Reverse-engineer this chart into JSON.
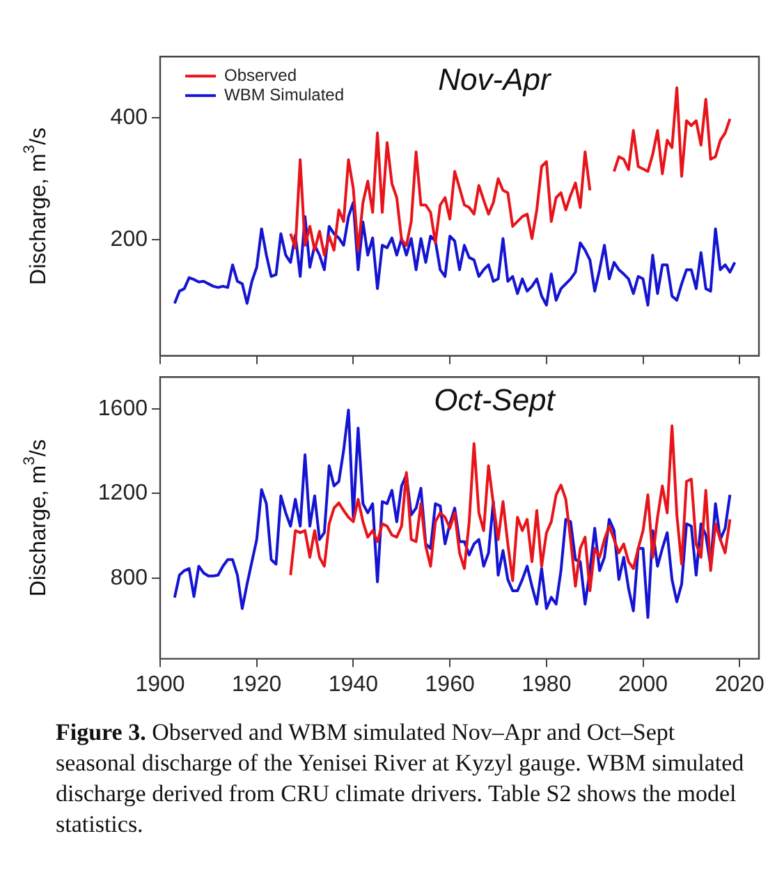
{
  "chart_data": [
    {
      "type": "line",
      "title": "Nov-Apr",
      "ylabel": "Discharge, m$^{3}$/s",
      "legend": "top left",
      "grid": false,
      "tick_labels": "y",
      "xlim": [
        1900,
        2024
      ],
      "xticks": [
        1900,
        1920,
        1940,
        1960,
        1980,
        2000,
        2020
      ],
      "ylim": [
        10,
        500
      ],
      "yticks": [
        200,
        400
      ],
      "series": [
        {
          "name": "Observed",
          "color": "#e8141b",
          "x": [
            1927,
            1928,
            1929,
            1930,
            1931,
            1932,
            1933,
            1934,
            1935,
            1936,
            1937,
            1938,
            1939,
            1940,
            1941,
            1942,
            1943,
            1944,
            1945,
            1946,
            1947,
            1948,
            1949,
            1950,
            1951,
            1952,
            1953,
            1954,
            1955,
            1956,
            1957,
            1958,
            1959,
            1960,
            1961,
            1962,
            1963,
            1964,
            1965,
            1966,
            1967,
            1968,
            1969,
            1970,
            1971,
            1972,
            1973,
            1974,
            1975,
            1976,
            1977,
            1978,
            1979,
            1980,
            1981,
            1982,
            1983,
            1984,
            1985,
            1986,
            1987,
            1988,
            1989,
            1990,
            1991,
            1992,
            1993,
            1994,
            1995,
            1996,
            1997,
            1998,
            1999,
            2000,
            2001,
            2002,
            2003,
            2004,
            2005,
            2006,
            2007,
            2008,
            2009,
            2010,
            2011,
            2012,
            2013,
            2014,
            2015,
            2016,
            2017,
            2018
          ],
          "values": [
            210,
            187,
            331,
            191,
            222,
            183,
            214,
            175,
            206,
            183,
            249,
            230,
            331,
            284,
            183,
            261,
            296,
            245,
            375,
            245,
            359,
            292,
            269,
            200,
            191,
            230,
            344,
            257,
            257,
            245,
            195,
            257,
            269,
            234,
            312,
            285,
            257,
            253,
            242,
            289,
            265,
            242,
            261,
            300,
            281,
            277,
            222,
            230,
            238,
            242,
            202,
            249,
            320,
            328,
            230,
            269,
            277,
            249,
            273,
            293,
            253,
            344,
            281,
            null,
            null,
            null,
            null,
            312,
            336,
            332,
            315,
            379,
            320,
            316,
            312,
            340,
            379,
            308,
            363,
            351,
            449,
            304,
            395,
            387,
            395,
            355,
            430,
            332,
            336,
            363,
            375,
            398
          ]
        },
        {
          "name": "WBM Simulated",
          "color": "#1414d2",
          "x": [
            1903,
            1904,
            1905,
            1906,
            1907,
            1908,
            1909,
            1910,
            1911,
            1912,
            1913,
            1914,
            1915,
            1916,
            1917,
            1918,
            1919,
            1920,
            1921,
            1922,
            1923,
            1924,
            1925,
            1926,
            1927,
            1928,
            1929,
            1930,
            1931,
            1932,
            1933,
            1934,
            1935,
            1936,
            1937,
            1938,
            1939,
            1940,
            1941,
            1942,
            1943,
            1944,
            1945,
            1946,
            1947,
            1948,
            1949,
            1950,
            1951,
            1952,
            1953,
            1954,
            1955,
            1956,
            1957,
            1958,
            1959,
            1960,
            1961,
            1962,
            1963,
            1964,
            1965,
            1966,
            1967,
            1968,
            1969,
            1970,
            1971,
            1972,
            1973,
            1974,
            1975,
            1976,
            1977,
            1978,
            1979,
            1980,
            1981,
            1982,
            1983,
            1984,
            1985,
            1986,
            1987,
            1988,
            1989,
            1990,
            1991,
            1992,
            1993,
            1994,
            1995,
            1996,
            1997,
            1998,
            1999,
            2000,
            2001,
            2002,
            2003,
            2004,
            2005,
            2006,
            2007,
            2008,
            2009,
            2010,
            2011,
            2012,
            2013,
            2014,
            2015,
            2016,
            2017,
            2018,
            2019
          ],
          "values": [
            96,
            116,
            120,
            138,
            135,
            131,
            132,
            128,
            124,
            122,
            124,
            122,
            159,
            132,
            128,
            96,
            132,
            155,
            218,
            175,
            140,
            143,
            210,
            175,
            163,
            208,
            140,
            238,
            155,
            191,
            175,
            151,
            222,
            210,
            203,
            191,
            238,
            261,
            151,
            229,
            175,
            203,
            120,
            191,
            187,
            203,
            175,
            202,
            175,
            202,
            151,
            202,
            163,
            206,
            198,
            151,
            140,
            206,
            198,
            151,
            191,
            171,
            167,
            140,
            151,
            159,
            132,
            136,
            202,
            132,
            140,
            112,
            136,
            116,
            124,
            136,
            108,
            93,
            144,
            101,
            120,
            128,
            136,
            147,
            195,
            183,
            167,
            116,
            151,
            191,
            136,
            163,
            151,
            144,
            136,
            112,
            140,
            136,
            93,
            175,
            112,
            159,
            159,
            108,
            101,
            128,
            151,
            151,
            120,
            179,
            120,
            116,
            218,
            151,
            159,
            147,
            163
          ]
        }
      ]
    },
    {
      "type": "line",
      "title": "Oct-Sept",
      "ylabel": "Discharge, m$^{3}$/s",
      "grid": false,
      "xlim": [
        1900,
        2024
      ],
      "xticks": [
        1900,
        1920,
        1940,
        1960,
        1980,
        2000,
        2020
      ],
      "ylim": [
        420,
        1750
      ],
      "yticks": [
        800,
        1200,
        1600
      ],
      "annotations": [
        "Figure 3.",
        "Observed and WBM simulated Nov–Apr and Oct–Sept seasonal discharge of the Yenisei River at Kyzyl gauge. WBM simulated discharge derived from CRU climate drivers. Table S2 shows the model statistics."
      ],
      "series": [
        {
          "color": "#e8141b",
          "x": [
            1927,
            1928,
            1929,
            1930,
            1931,
            1932,
            1933,
            1934,
            1935,
            1936,
            1937,
            1938,
            1939,
            1940,
            1941,
            1942,
            1943,
            1944,
            1945,
            1946,
            1947,
            1948,
            1949,
            1950,
            1951,
            1952,
            1953,
            1954,
            1955,
            1956,
            1957,
            1958,
            1959,
            1960,
            1961,
            1962,
            1963,
            1964,
            1965,
            1966,
            1967,
            1968,
            1969,
            1970,
            1971,
            1972,
            1973,
            1974,
            1975,
            1976,
            1977,
            1978,
            1979,
            1980,
            1981,
            1982,
            1983,
            1984,
            1985,
            1986,
            1987,
            1988,
            1989,
            1990,
            1991,
            1992,
            1993,
            1994,
            1995,
            1996,
            1997,
            1998,
            1999,
            2000,
            2001,
            2002,
            2003,
            2004,
            2005,
            2006,
            2007,
            2008,
            2009,
            2010,
            2011,
            2012,
            2013,
            2014,
            2015,
            2016,
            2017,
            2018
          ],
          "values": [
            815,
            1025,
            1015,
            1025,
            899,
            1025,
            899,
            857,
            1057,
            1131,
            1156,
            1120,
            1088,
            1067,
            1173,
            1067,
            994,
            1025,
            973,
            1057,
            1046,
            1004,
            994,
            1046,
            1299,
            983,
            973,
            1152,
            952,
            857,
            1067,
            1109,
            1088,
            1036,
            1109,
            920,
            846,
            1067,
            1436,
            1109,
            1025,
            1331,
            1152,
            983,
            1162,
            962,
            789,
            1088,
            1025,
            1078,
            878,
            1120,
            857,
            1015,
            1067,
            1194,
            1240,
            1173,
            983,
            762,
            941,
            994,
            741,
            941,
            899,
            983,
            1046,
            983,
            920,
            962,
            878,
            846,
            941,
            1025,
            1194,
            899,
            1088,
            1236,
            1109,
            1520,
            1099,
            867,
            1257,
            1268,
            962,
            899,
            1215,
            836,
            1057,
            983,
            920,
            1078
          ]
        },
        {
          "color": "#1414d2",
          "x": [
            1903,
            1904,
            1905,
            1906,
            1907,
            1908,
            1909,
            1910,
            1911,
            1912,
            1913,
            1914,
            1915,
            1916,
            1917,
            1918,
            1919,
            1920,
            1921,
            1922,
            1923,
            1924,
            1925,
            1926,
            1927,
            1928,
            1929,
            1930,
            1931,
            1932,
            1933,
            1934,
            1935,
            1936,
            1937,
            1938,
            1939,
            1940,
            1941,
            1942,
            1943,
            1944,
            1945,
            1946,
            1947,
            1948,
            1949,
            1950,
            1951,
            1952,
            1953,
            1954,
            1955,
            1956,
            1957,
            1958,
            1959,
            1960,
            1961,
            1962,
            1963,
            1964,
            1965,
            1966,
            1967,
            1968,
            1969,
            1970,
            1971,
            1972,
            1973,
            1974,
            1975,
            1976,
            1977,
            1978,
            1979,
            1980,
            1981,
            1982,
            1983,
            1984,
            1985,
            1986,
            1987,
            1988,
            1989,
            1990,
            1991,
            1992,
            1993,
            1994,
            1995,
            1996,
            1997,
            1998,
            1999,
            2000,
            2001,
            2002,
            2003,
            2004,
            2005,
            2006,
            2007,
            2008,
            2009,
            2010,
            2011,
            2012,
            2013,
            2014,
            2015,
            2016,
            2017,
            2018
          ],
          "values": [
            709,
            815,
            836,
            846,
            714,
            857,
            825,
            811,
            811,
            815,
            857,
            888,
            888,
            815,
            657,
            773,
            878,
            983,
            1219,
            1152,
            888,
            867,
            1189,
            1109,
            1046,
            1173,
            1046,
            1383,
            1046,
            1189,
            983,
            1015,
            1331,
            1236,
            1257,
            1404,
            1594,
            1088,
            1509,
            1152,
            1109,
            1152,
            783,
            1162,
            1152,
            1215,
            1067,
            1236,
            1288,
            1099,
            1131,
            1225,
            962,
            941,
            1152,
            1141,
            962,
            1057,
            1131,
            973,
            973,
            910,
            962,
            983,
            857,
            920,
            1162,
            815,
            931,
            794,
            741,
            741,
            794,
            857,
            762,
            678,
            846,
            657,
            710,
            678,
            836,
            1078,
            1067,
            888,
            878,
            678,
            836,
            1036,
            836,
            899,
            1078,
            1025,
            794,
            899,
            752,
            646,
            941,
            941,
            615,
            1025,
            857,
            941,
            1015,
            794,
            689,
            773,
            1057,
            1046,
            815,
            1057,
            1004,
            857,
            1152,
            983,
            1036,
            1194
          ]
        }
      ]
    }
  ]
}
